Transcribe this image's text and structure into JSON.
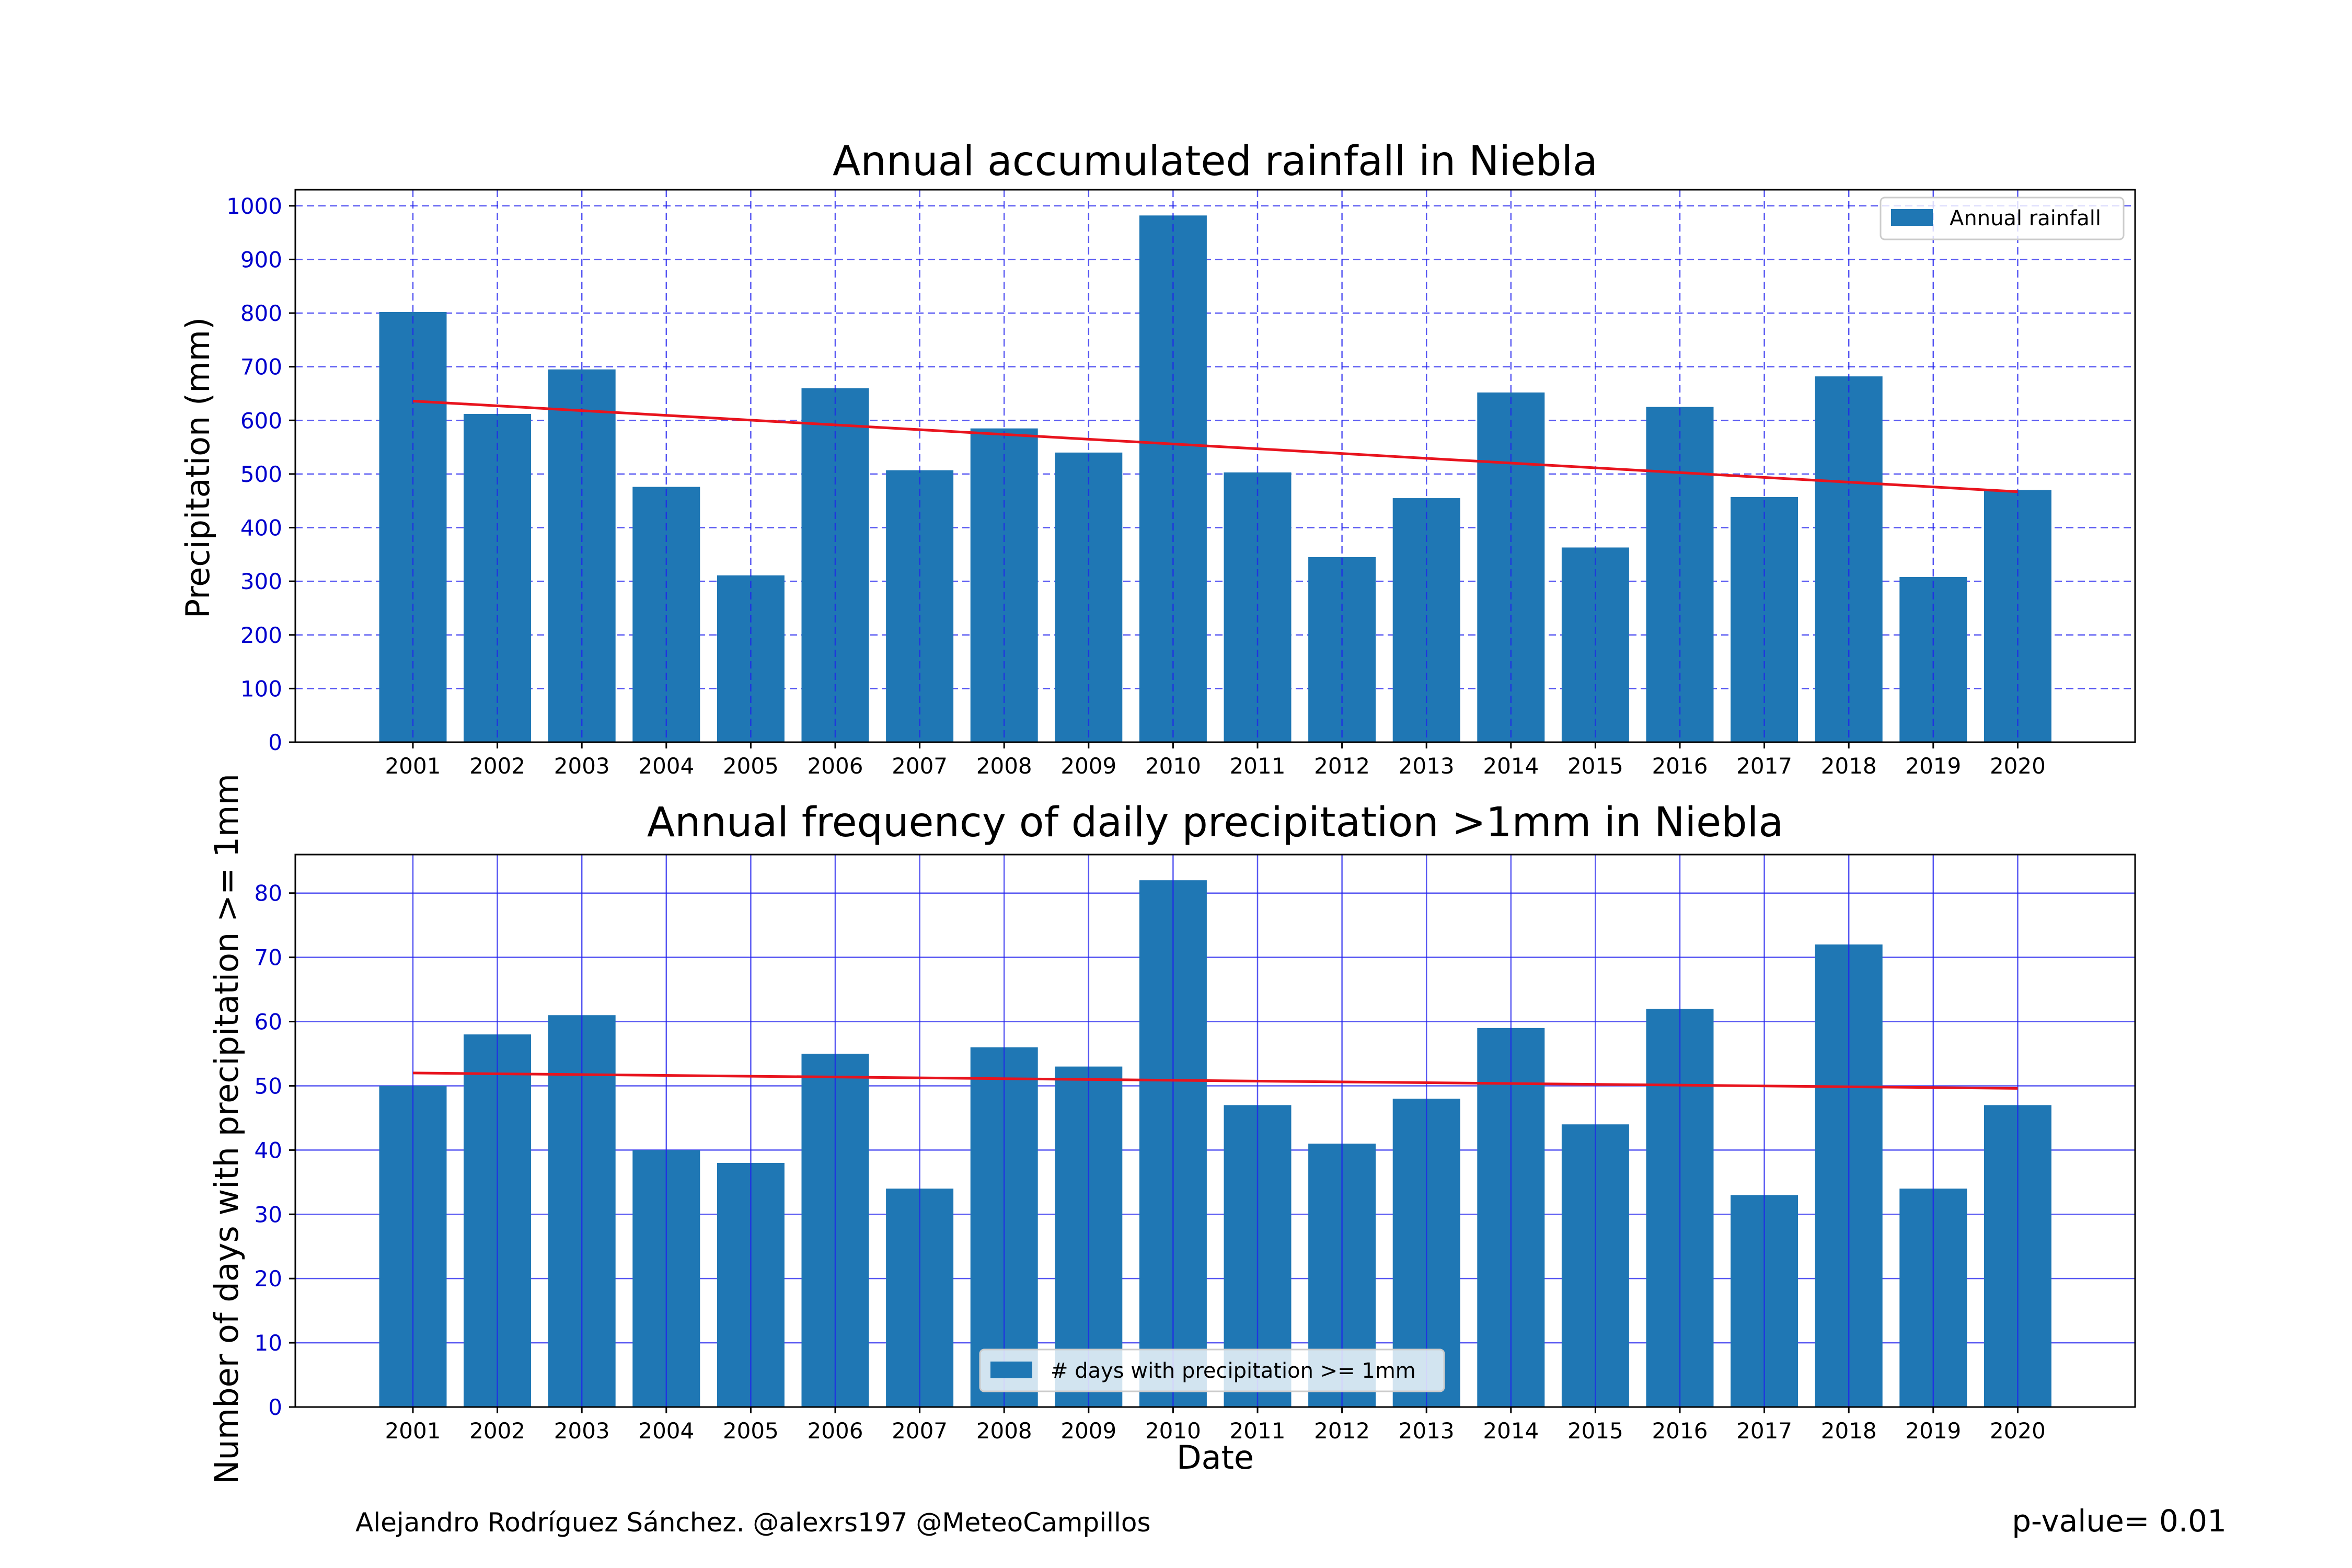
{
  "footer": {
    "credit": "Alejandro Rodríguez Sánchez. @alexrs197 @MeteoCampillos",
    "pvalue": "p-value= 0.01"
  },
  "colors": {
    "bar": "#1f77b4",
    "trend": "#e8141e",
    "grid": "#2020ee",
    "ytick": "#0000cc"
  },
  "chart_data": [
    {
      "type": "bar",
      "title": "Annual accumulated rainfall in Niebla",
      "xlabel": "",
      "ylabel": "Precipitation (mm)",
      "legend": "Annual rainfall",
      "legend_position": "top-right",
      "grid": "dashed",
      "categories": [
        "2001",
        "2002",
        "2003",
        "2004",
        "2005",
        "2006",
        "2007",
        "2008",
        "2009",
        "2010",
        "2011",
        "2012",
        "2013",
        "2014",
        "2015",
        "2016",
        "2017",
        "2018",
        "2019",
        "2020"
      ],
      "values": [
        802,
        612,
        695,
        476,
        311,
        660,
        507,
        585,
        540,
        982,
        503,
        345,
        455,
        652,
        363,
        625,
        457,
        682,
        308,
        470
      ],
      "trend": [
        636,
        467
      ],
      "ylim": [
        0,
        1030
      ],
      "yticks": [
        0,
        100,
        200,
        300,
        400,
        500,
        600,
        700,
        800,
        900,
        1000
      ]
    },
    {
      "type": "bar",
      "title": "Annual frequency of daily precipitation >1mm in Niebla",
      "xlabel": "Date",
      "ylabel": "Number of days with precipitation >= 1mm",
      "legend": "# days with precipitation >= 1mm",
      "legend_position": "bottom-center",
      "grid": "solid",
      "categories": [
        "2001",
        "2002",
        "2003",
        "2004",
        "2005",
        "2006",
        "2007",
        "2008",
        "2009",
        "2010",
        "2011",
        "2012",
        "2013",
        "2014",
        "2015",
        "2016",
        "2017",
        "2018",
        "2019",
        "2020"
      ],
      "values": [
        50,
        58,
        61,
        40,
        38,
        55,
        34,
        56,
        53,
        82,
        47,
        41,
        48,
        59,
        44,
        62,
        33,
        72,
        34,
        47
      ],
      "trend": [
        52,
        49.6
      ],
      "ylim": [
        0,
        86
      ],
      "yticks": [
        0,
        10,
        20,
        30,
        40,
        50,
        60,
        70,
        80
      ]
    }
  ]
}
